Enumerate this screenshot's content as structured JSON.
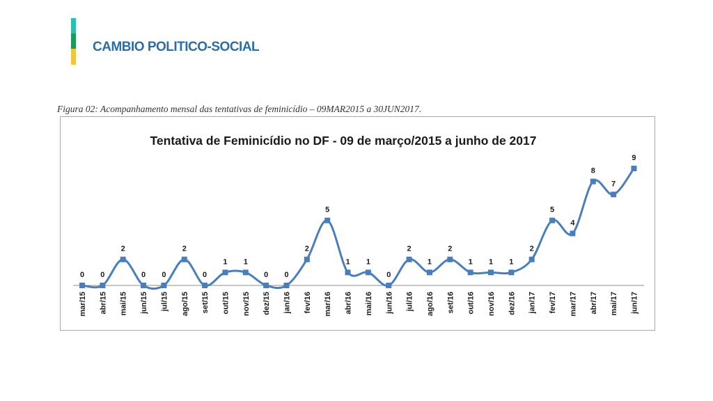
{
  "header": {
    "title": "CAMBIO POLITICO-SOCIAL",
    "title_color": "#2e6da4",
    "accent_colors": [
      "#2bbfb3",
      "#1a9b5a",
      "#f2c53d"
    ]
  },
  "figure": {
    "caption": "Figura 02: Acompanhamento mensal das tentativas de feminicídio – 09MAR2015 a 30JUN2017."
  },
  "chart_data": {
    "type": "line",
    "title": "Tentativa de Feminicídio no DF - 09 de março/2015 a junho de 2017",
    "xlabel": "",
    "ylabel": "",
    "categories": [
      "mar/15",
      "abr/15",
      "mai/15",
      "jun/15",
      "jul/15",
      "ago/15",
      "set/15",
      "out/15",
      "nov/15",
      "dez/15",
      "jan/16",
      "fev/16",
      "mar/16",
      "abr/16",
      "mai/16",
      "jun/16",
      "jul/16",
      "ago/16",
      "set/16",
      "out/16",
      "nov/16",
      "dez/16",
      "jan/17",
      "fev/17",
      "mar/17",
      "abr/17",
      "mai/17",
      "jun/17"
    ],
    "series": [
      {
        "values": [
          0,
          0,
          2,
          0,
          0,
          2,
          0,
          1,
          1,
          0,
          0,
          2,
          5,
          1,
          1,
          0,
          2,
          1,
          2,
          1,
          1,
          1,
          2,
          5,
          4,
          8,
          7,
          9
        ]
      }
    ],
    "ylim": [
      0,
      9
    ],
    "line_color": "#4a7ebb",
    "marker": "square",
    "smooth": true,
    "data_labels": true,
    "grid": false,
    "legend": "none"
  }
}
